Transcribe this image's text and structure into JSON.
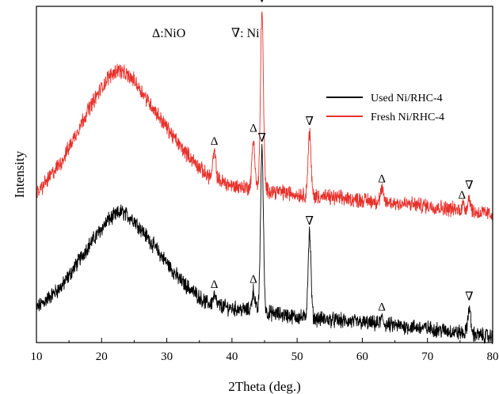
{
  "chart_data": {
    "type": "line",
    "xlabel": "2Theta (deg.)",
    "ylabel": "Intensity",
    "xlim": [
      10,
      80
    ],
    "x_ticks": [
      "10",
      "20",
      "30",
      "40",
      "50",
      "60",
      "70",
      "80"
    ],
    "y_ticks_labeled": false,
    "legend": {
      "placement": "top-right"
    },
    "grid": false,
    "series": [
      {
        "name": "Used Ni/RHC-4",
        "color": "#000000",
        "baseline": 0.0,
        "background": [
          [
            10,
            0.12
          ],
          [
            14,
            0.2
          ],
          [
            18,
            0.34
          ],
          [
            21,
            0.43
          ],
          [
            23,
            0.46
          ],
          [
            25,
            0.43
          ],
          [
            28,
            0.34
          ],
          [
            32,
            0.22
          ],
          [
            36,
            0.14
          ],
          [
            40,
            0.12
          ],
          [
            44,
            0.11
          ],
          [
            50,
            0.09
          ],
          [
            60,
            0.07
          ],
          [
            70,
            0.05
          ],
          [
            80,
            0.02
          ]
        ],
        "peaks": [
          [
            37.3,
            0.03
          ],
          [
            43.3,
            0.07
          ],
          [
            44.6,
            0.57
          ],
          [
            51.9,
            0.3
          ],
          [
            63.0,
            0.02
          ],
          [
            76.4,
            0.09
          ]
        ]
      },
      {
        "name": "Fresh Ni/RHC-4",
        "color": "#e8302a",
        "baseline": 0.44,
        "background": [
          [
            10,
            0.08
          ],
          [
            14,
            0.2
          ],
          [
            18,
            0.38
          ],
          [
            21,
            0.49
          ],
          [
            22.5,
            0.52
          ],
          [
            25,
            0.48
          ],
          [
            28,
            0.38
          ],
          [
            32,
            0.25
          ],
          [
            36,
            0.15
          ],
          [
            40,
            0.11
          ],
          [
            44,
            0.1
          ],
          [
            50,
            0.08
          ],
          [
            60,
            0.06
          ],
          [
            70,
            0.04
          ],
          [
            80,
            0.01
          ]
        ],
        "peaks": [
          [
            37.3,
            0.09
          ],
          [
            43.3,
            0.17
          ],
          [
            44.6,
            0.63
          ],
          [
            51.9,
            0.22
          ],
          [
            63.0,
            0.04
          ],
          [
            75.5,
            0.02
          ],
          [
            76.4,
            0.05
          ]
        ]
      }
    ],
    "phase_legend": [
      {
        "symbol": "Δ",
        "label": ":NiO"
      },
      {
        "symbol": "∇",
        "label": ": Ni"
      }
    ],
    "phase_markers": [
      {
        "series": "Fresh Ni/RHC-4",
        "x": 37.3,
        "symbol": "Δ"
      },
      {
        "series": "Fresh Ni/RHC-4",
        "x": 43.3,
        "symbol": "Δ"
      },
      {
        "series": "Fresh Ni/RHC-4",
        "x": 44.6,
        "symbol": "∇"
      },
      {
        "series": "Fresh Ni/RHC-4",
        "x": 51.9,
        "symbol": "∇"
      },
      {
        "series": "Fresh Ni/RHC-4",
        "x": 63.0,
        "symbol": "Δ"
      },
      {
        "series": "Fresh Ni/RHC-4",
        "x": 75.3,
        "symbol": "Δ"
      },
      {
        "series": "Fresh Ni/RHC-4",
        "x": 76.4,
        "symbol": "∇"
      },
      {
        "series": "Used Ni/RHC-4",
        "x": 37.3,
        "symbol": "Δ"
      },
      {
        "series": "Used Ni/RHC-4",
        "x": 43.3,
        "symbol": "Δ"
      },
      {
        "series": "Used Ni/RHC-4",
        "x": 44.6,
        "symbol": "∇"
      },
      {
        "series": "Used Ni/RHC-4",
        "x": 51.9,
        "symbol": "∇"
      },
      {
        "series": "Used Ni/RHC-4",
        "x": 63.0,
        "symbol": "Δ"
      },
      {
        "series": "Used Ni/RHC-4",
        "x": 76.4,
        "symbol": "∇"
      }
    ]
  }
}
